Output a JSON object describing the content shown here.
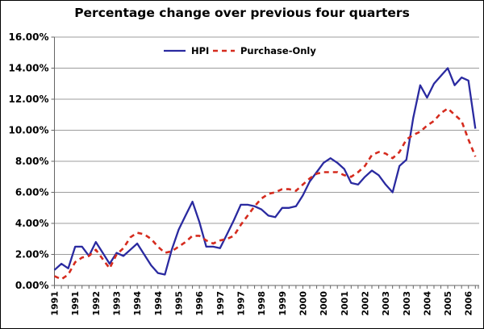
{
  "title": "Percentage change over previous four quarters",
  "legend": {
    "series1_label": "HPI",
    "series2_label": "Purchase-Only"
  },
  "colors": {
    "hpi_line": "#2a2aa0",
    "purchase_only_line": "#d52b1e",
    "gridline": "#9c9c9c",
    "axis": "#666666",
    "text": "#000000",
    "background": "#ffffff",
    "border": "#000000"
  },
  "chart_data": {
    "type": "line",
    "title": "Percentage change over previous four quarters",
    "xlabel": "",
    "ylabel": "",
    "ylim": [
      0,
      16
    ],
    "y_tick_step": 2,
    "y_tick_labels": [
      "0.00%",
      "2.00%",
      "4.00%",
      "6.00%",
      "8.00%",
      "10.00%",
      "12.00%",
      "14.00%",
      "16.00%"
    ],
    "grid": true,
    "legend_position": "top-center-inside",
    "x_tick_label_every": 3,
    "x_tick_labels_shown": [
      "1991",
      "1991",
      "1992",
      "1993",
      "1994",
      "1994",
      "1995",
      "1996",
      "1997",
      "1997",
      "1998",
      "1999",
      "2000",
      "2000",
      "2001",
      "2002",
      "2003",
      "2003",
      "2004",
      "2005",
      "2006"
    ],
    "categories": [
      "1991Q1",
      "1991Q2",
      "1991Q3",
      "1991Q4",
      "1992Q1",
      "1992Q2",
      "1992Q3",
      "1992Q4",
      "1993Q1",
      "1993Q2",
      "1993Q3",
      "1993Q4",
      "1994Q1",
      "1994Q2",
      "1994Q3",
      "1994Q4",
      "1995Q1",
      "1995Q2",
      "1995Q3",
      "1995Q4",
      "1996Q1",
      "1996Q2",
      "1996Q3",
      "1996Q4",
      "1997Q1",
      "1997Q2",
      "1997Q3",
      "1997Q4",
      "1998Q1",
      "1998Q2",
      "1998Q3",
      "1998Q4",
      "1999Q1",
      "1999Q2",
      "1999Q3",
      "1999Q4",
      "2000Q1",
      "2000Q2",
      "2000Q3",
      "2000Q4",
      "2001Q1",
      "2001Q2",
      "2001Q3",
      "2001Q4",
      "2002Q1",
      "2002Q2",
      "2002Q3",
      "2002Q4",
      "2003Q1",
      "2003Q2",
      "2003Q3",
      "2003Q4",
      "2004Q1",
      "2004Q2",
      "2004Q3",
      "2004Q4",
      "2005Q1",
      "2005Q2",
      "2005Q3",
      "2005Q4",
      "2006Q1",
      "2006Q2"
    ],
    "series": [
      {
        "name": "HPI",
        "style": "solid",
        "color": "#2a2aa0",
        "values": [
          1.0,
          1.4,
          1.1,
          2.5,
          2.5,
          1.9,
          2.8,
          2.1,
          1.4,
          2.1,
          1.9,
          2.3,
          2.7,
          2.0,
          1.3,
          0.8,
          0.7,
          2.3,
          3.6,
          4.5,
          5.4,
          4.1,
          2.5,
          2.5,
          2.4,
          3.3,
          4.2,
          5.2,
          5.2,
          5.1,
          4.9,
          4.5,
          4.4,
          5.0,
          5.0,
          5.1,
          5.8,
          6.7,
          7.3,
          7.9,
          8.2,
          7.9,
          7.5,
          6.6,
          6.5,
          7.0,
          7.4,
          7.1,
          6.5,
          6.0,
          7.7,
          8.1,
          10.8,
          12.9,
          12.1,
          13.0,
          13.5,
          14.0,
          12.9,
          13.4,
          13.2,
          10.1
        ]
      },
      {
        "name": "Purchase-Only",
        "style": "dashed",
        "color": "#d52b1e",
        "values": [
          0.6,
          0.4,
          0.7,
          1.5,
          1.8,
          1.9,
          2.3,
          1.7,
          1.1,
          2.0,
          2.4,
          3.1,
          3.4,
          3.3,
          3.0,
          2.5,
          2.1,
          2.2,
          2.5,
          2.8,
          3.2,
          3.2,
          2.9,
          2.7,
          2.9,
          3.0,
          3.2,
          3.9,
          4.5,
          5.1,
          5.6,
          5.9,
          6.0,
          6.2,
          6.2,
          6.1,
          6.5,
          6.9,
          7.2,
          7.3,
          7.3,
          7.3,
          7.1,
          7.0,
          7.3,
          7.7,
          8.4,
          8.6,
          8.5,
          8.2,
          8.6,
          9.4,
          9.7,
          9.9,
          10.3,
          10.6,
          11.1,
          11.4,
          11.0,
          10.6,
          9.4,
          8.3
        ]
      }
    ]
  }
}
